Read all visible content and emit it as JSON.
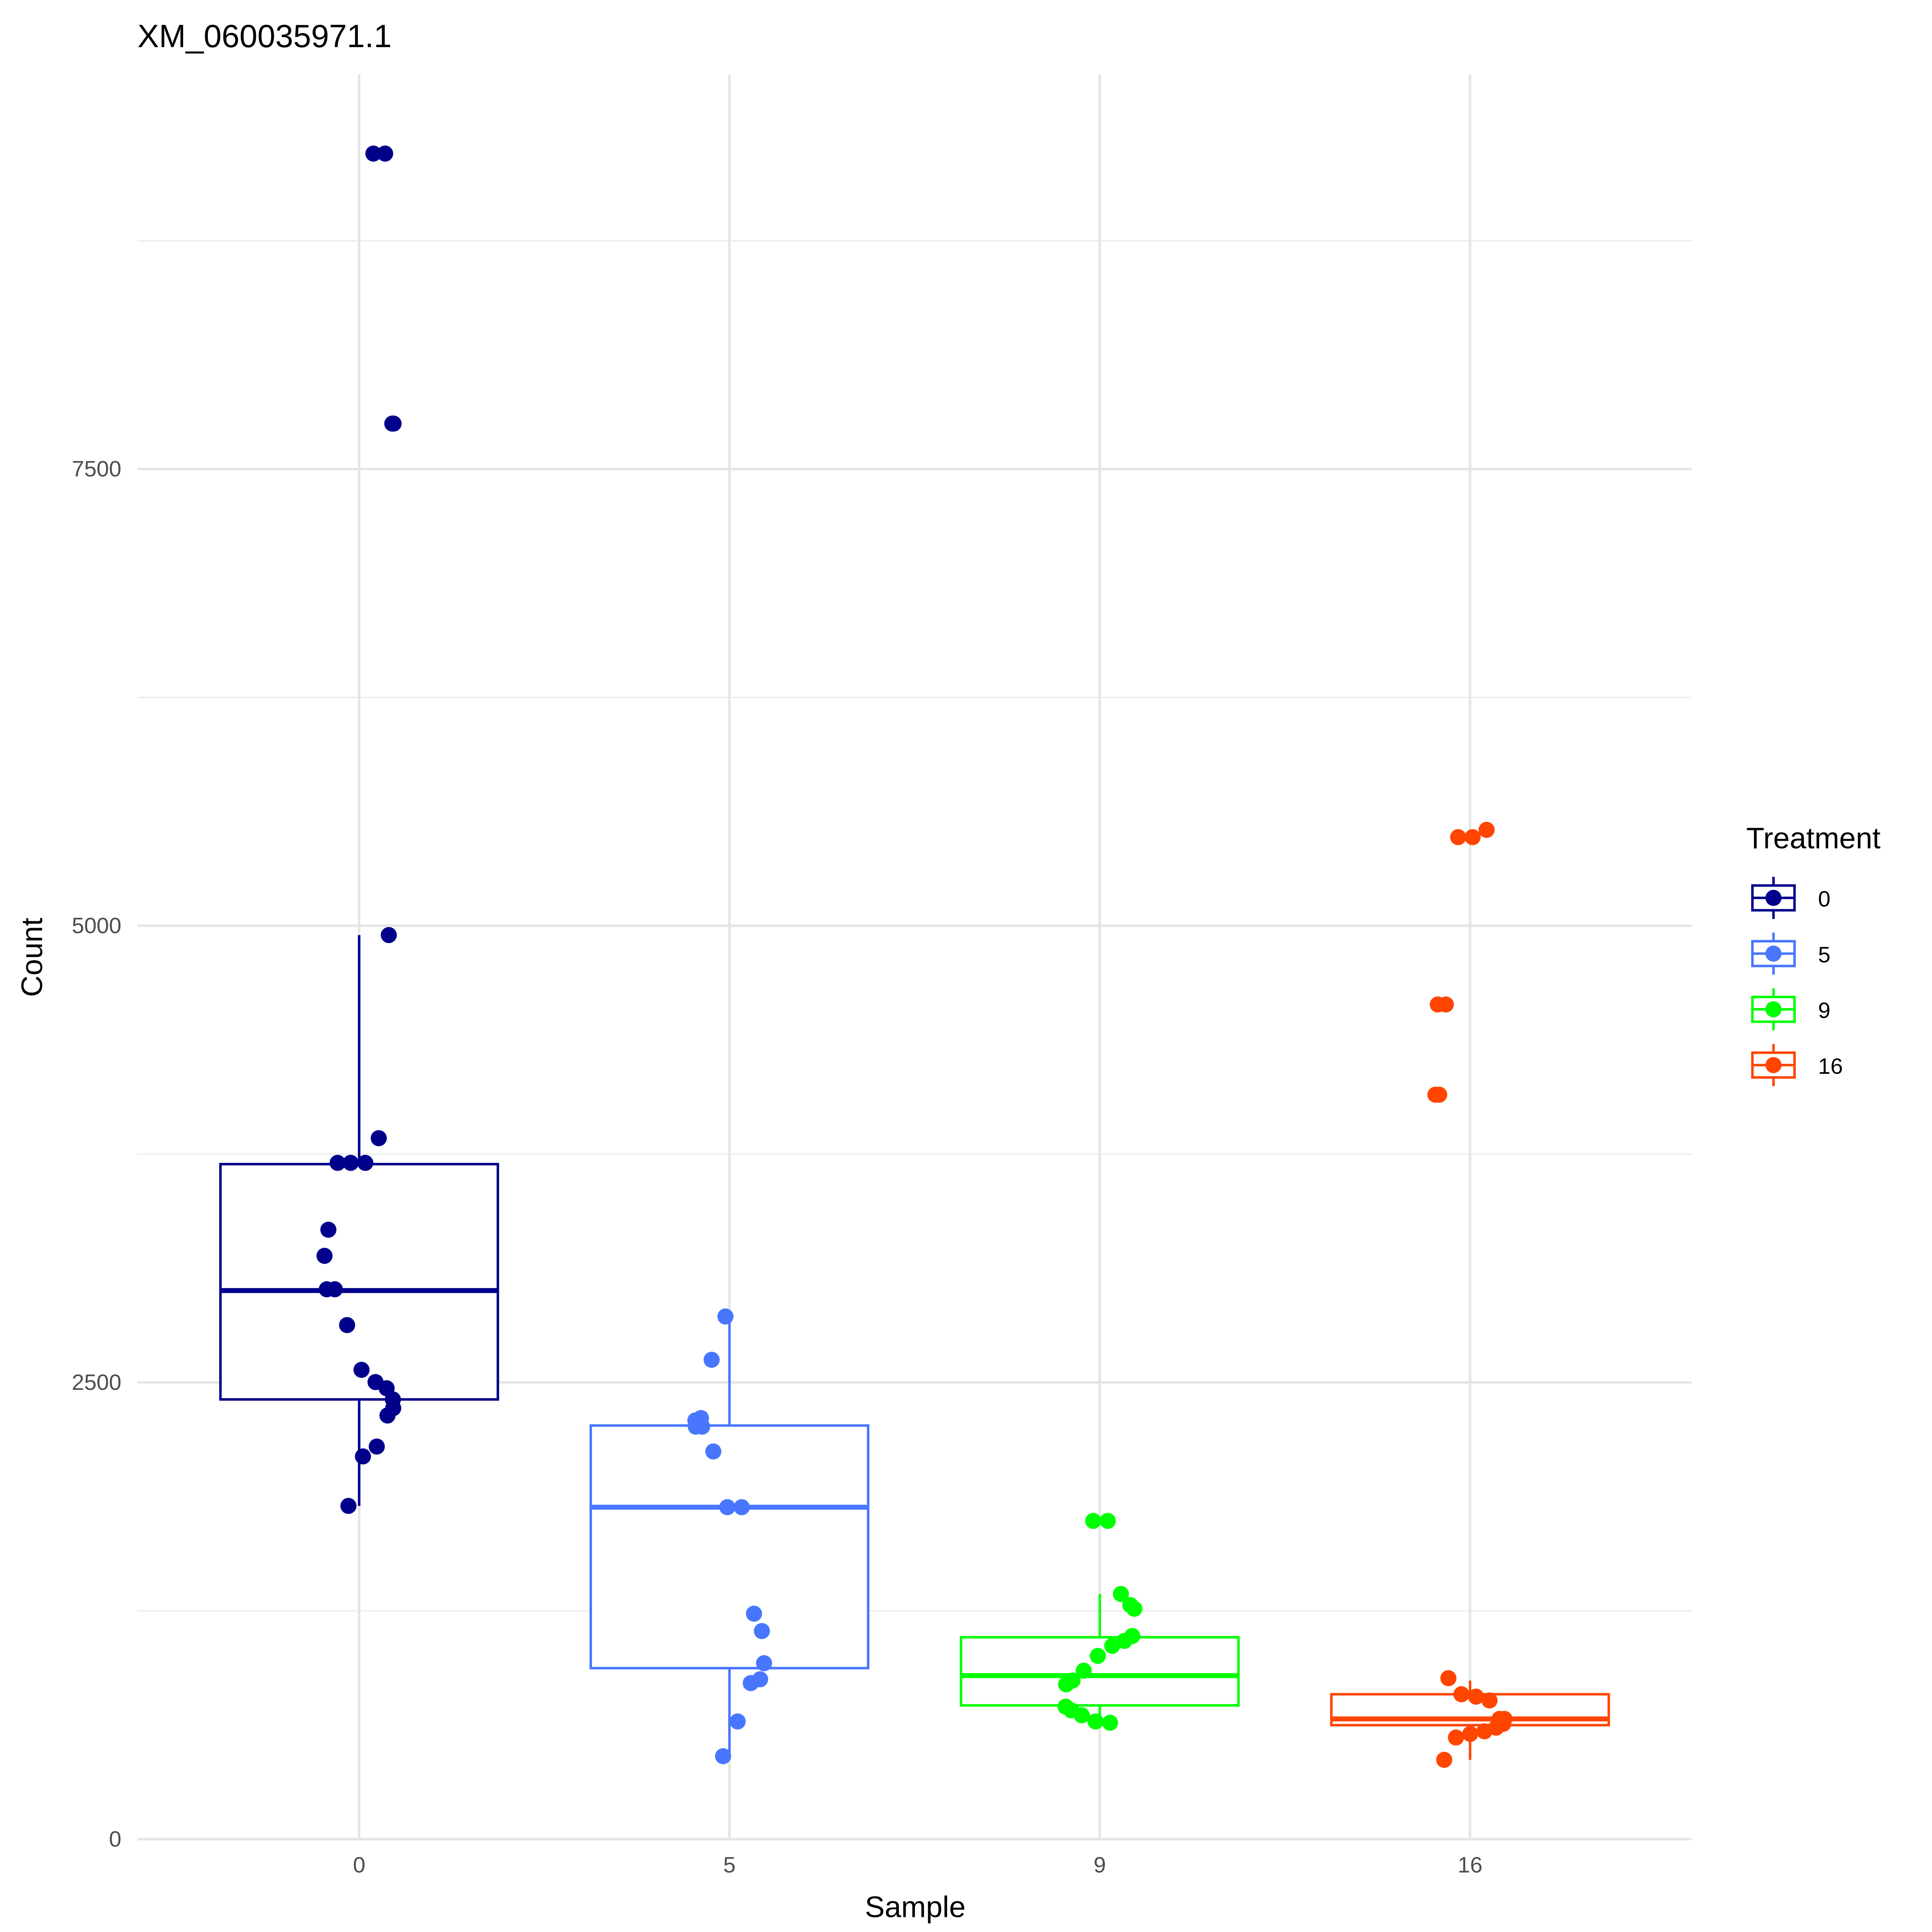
{
  "chart_data": {
    "type": "box",
    "title": "XM_060035971.1",
    "xlabel": "Sample",
    "ylabel": "Count",
    "categories": [
      "0",
      "5",
      "9",
      "16"
    ],
    "yticks": [
      "0",
      "2500",
      "5000",
      "7500"
    ],
    "ytick_values": [
      0,
      2500,
      5000,
      7500
    ],
    "ylim": [
      0,
      9650
    ],
    "grid": true,
    "legend": {
      "title": "Treatment",
      "position": "right",
      "entries": [
        "0",
        "5",
        "9",
        "16"
      ]
    },
    "colors": [
      "#00008B",
      "#4876FF",
      "#00FF00",
      "#FF4500"
    ],
    "boxes": [
      {
        "q1": 2407,
        "median": 3003,
        "q3": 3695,
        "whisker_low": 1824,
        "whisker_high": 4949
      },
      {
        "q1": 936,
        "median": 1817,
        "q3": 2264,
        "whisker_low": 454,
        "whisker_high": 2861
      },
      {
        "q1": 732,
        "median": 895,
        "q3": 1105,
        "whisker_low": 637,
        "whisker_high": 1342
      },
      {
        "q1": 624,
        "median": 658,
        "q3": 793,
        "whisker_low": 434,
        "whisker_high": 868
      }
    ],
    "points": [
      [
        9227,
        9227,
        7749,
        7749,
        4949,
        3837,
        3702,
        3702,
        3702,
        3336,
        3193,
        3010,
        3010,
        2814,
        2569,
        2502,
        2468,
        2407,
        2359,
        2319,
        2149,
        2095,
        1824
      ],
      [
        2861,
        2624,
        2305,
        2292,
        2258,
        2258,
        2122,
        1817,
        1817,
        1234,
        1139,
        963,
        875,
        854,
        644,
        454
      ],
      [
        1742,
        1742,
        1342,
        1281,
        1261,
        1112,
        1085,
        1058,
        1003,
        922,
        868,
        847,
        725,
        705,
        678,
        644,
        637
      ],
      [
        5525,
        5485,
        5485,
        4569,
        4569,
        4075,
        4075,
        881,
        793,
        780,
        759,
        658,
        658,
        631,
        610,
        590,
        576,
        556,
        434
      ]
    ]
  }
}
